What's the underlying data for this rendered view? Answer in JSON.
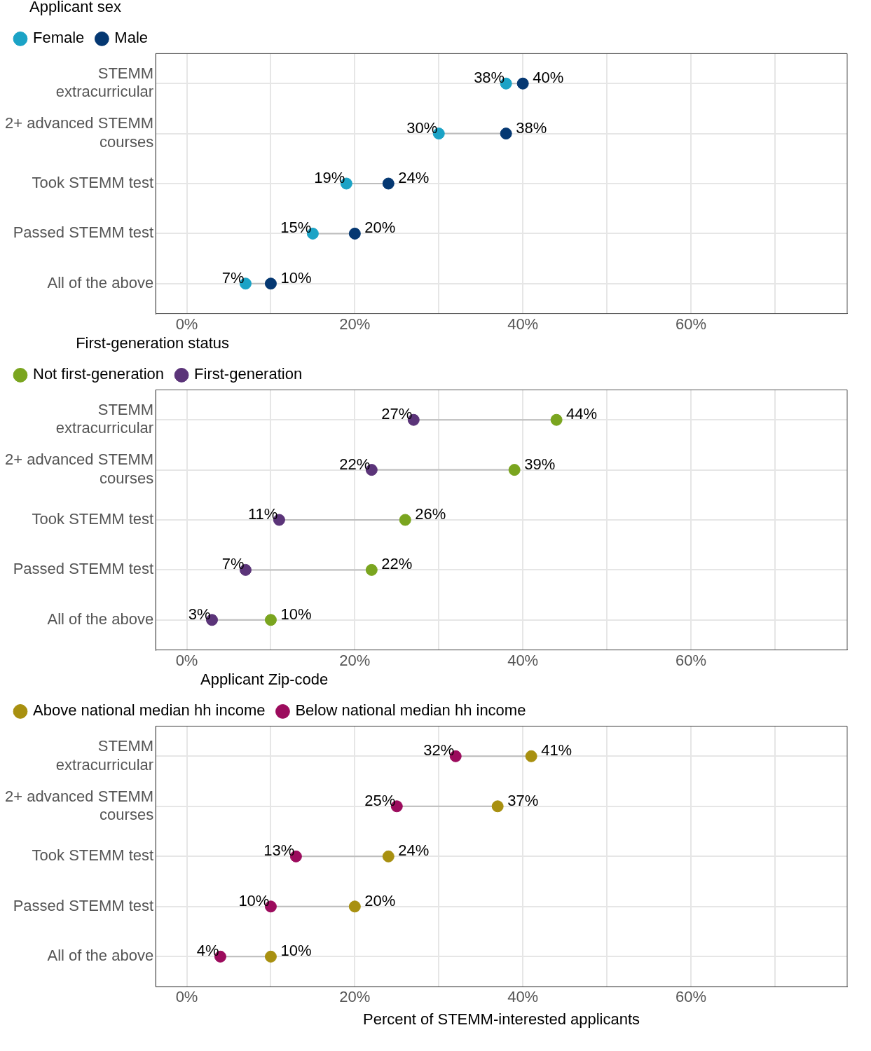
{
  "chart_data": [
    {
      "type": "scatter",
      "orientation": "horizontal",
      "legend_title": "Applicant sex",
      "legend": "top",
      "marker": "circle",
      "grid": true,
      "categories": [
        "STEMM extracurricular",
        "2+ advanced STEMM courses",
        "Took STEMM test",
        "Passed STEMM test",
        "All of the above"
      ],
      "xlim": [
        -3.7,
        78.6
      ],
      "xticks": [
        {
          "value": 0,
          "label": "0%"
        },
        {
          "value": 10,
          "label": null
        },
        {
          "value": 20,
          "label": "20%"
        },
        {
          "value": 30,
          "label": null
        },
        {
          "value": 40,
          "label": "40%"
        },
        {
          "value": 50,
          "label": null
        },
        {
          "value": 60,
          "label": "60%"
        },
        {
          "value": 70,
          "label": null
        }
      ],
      "series": [
        {
          "name": "Female",
          "color": "#1ba3c6",
          "values": [
            38,
            30,
            19,
            15,
            7
          ],
          "value_labels": [
            "38%",
            "30%",
            "19%",
            "15%",
            "7%"
          ]
        },
        {
          "name": "Male",
          "color": "#053872",
          "values": [
            40,
            38,
            24,
            20,
            10
          ],
          "value_labels": [
            "40%",
            "38%",
            "24%",
            "20%",
            "10%"
          ]
        }
      ]
    },
    {
      "type": "scatter",
      "orientation": "horizontal",
      "legend_title": "First-generation status",
      "legend": "top",
      "marker": "circle",
      "grid": true,
      "categories": [
        "STEMM extracurricular",
        "2+ advanced STEMM courses",
        "Took STEMM test",
        "Passed STEMM test",
        "All of the above"
      ],
      "xlim": [
        -3.7,
        78.6
      ],
      "xticks": [
        {
          "value": 0,
          "label": "0%"
        },
        {
          "value": 10,
          "label": null
        },
        {
          "value": 20,
          "label": "20%"
        },
        {
          "value": 30,
          "label": null
        },
        {
          "value": 40,
          "label": "40%"
        },
        {
          "value": 50,
          "label": null
        },
        {
          "value": 60,
          "label": "60%"
        },
        {
          "value": 70,
          "label": null
        }
      ],
      "series": [
        {
          "name": "Not first-generation",
          "color": "#7aa51f",
          "values": [
            44,
            39,
            26,
            22,
            10
          ],
          "value_labels": [
            "44%",
            "39%",
            "26%",
            "22%",
            "10%"
          ]
        },
        {
          "name": "First-generation",
          "color": "#5b3479",
          "values": [
            27,
            22,
            11,
            7,
            3
          ],
          "value_labels": [
            "27%",
            "22%",
            "11%",
            "7%",
            "3%"
          ]
        }
      ]
    },
    {
      "type": "scatter",
      "orientation": "horizontal",
      "legend_title": "Applicant Zip-code",
      "legend": "top",
      "marker": "circle",
      "grid": true,
      "xlabel": "Percent of STEMM-interested applicants",
      "categories": [
        "STEMM extracurricular",
        "2+ advanced STEMM courses",
        "Took STEMM test",
        "Passed STEMM test",
        "All of the above"
      ],
      "xlim": [
        -3.7,
        78.6
      ],
      "xticks": [
        {
          "value": 0,
          "label": "0%"
        },
        {
          "value": 10,
          "label": null
        },
        {
          "value": 20,
          "label": "20%"
        },
        {
          "value": 30,
          "label": null
        },
        {
          "value": 40,
          "label": "40%"
        },
        {
          "value": 50,
          "label": null
        },
        {
          "value": 60,
          "label": "60%"
        },
        {
          "value": 70,
          "label": null
        }
      ],
      "series": [
        {
          "name": "Above national median hh income",
          "color": "#a89010",
          "values": [
            41,
            37,
            24,
            20,
            10
          ],
          "value_labels": [
            "41%",
            "37%",
            "24%",
            "20%",
            "10%"
          ]
        },
        {
          "name": "Below national median hh income",
          "color": "#9c0b5d",
          "values": [
            32,
            25,
            13,
            10,
            4
          ],
          "value_labels": [
            "32%",
            "25%",
            "13%",
            "10%",
            "4%"
          ]
        }
      ]
    }
  ]
}
